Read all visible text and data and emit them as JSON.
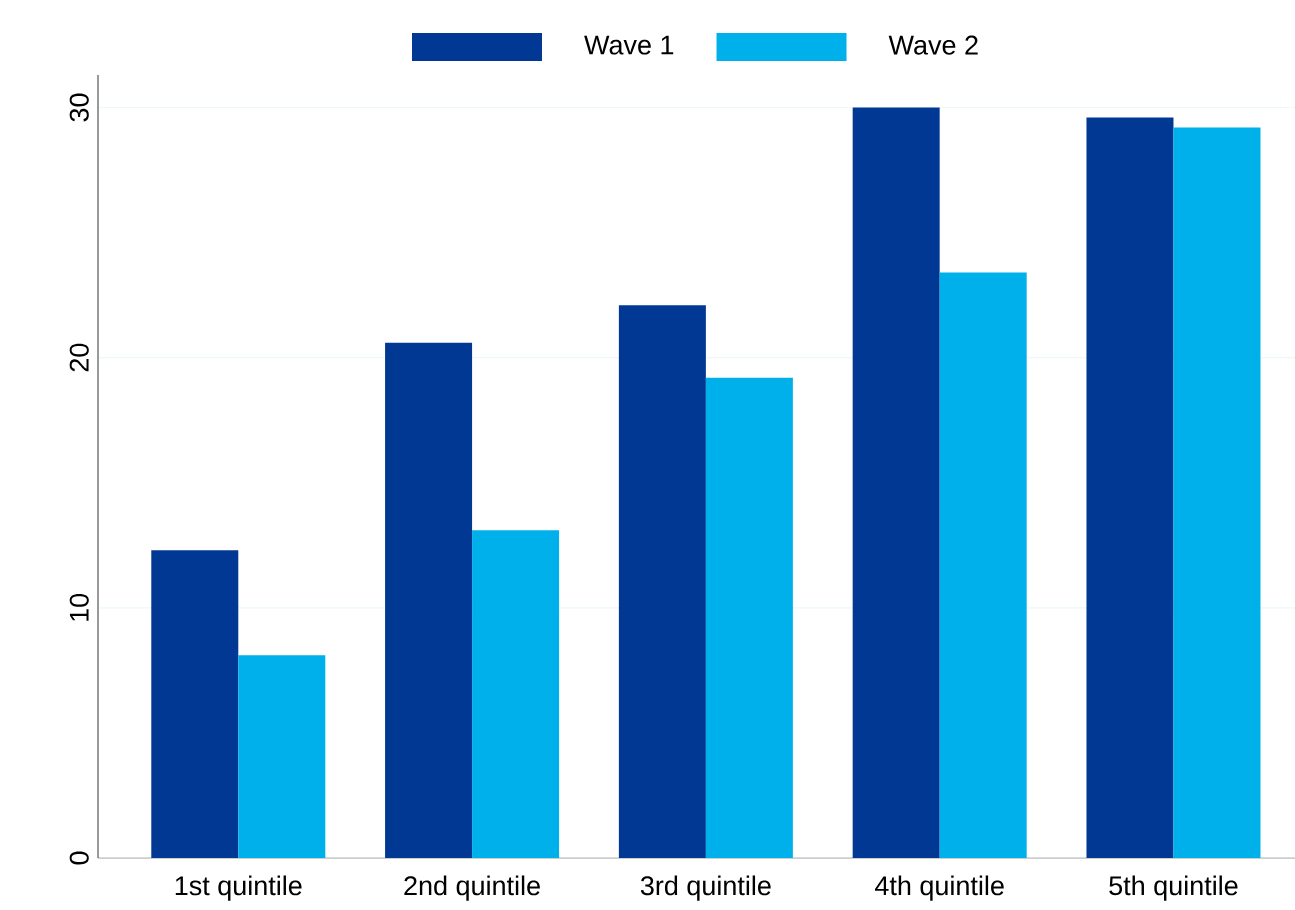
{
  "chart_data": {
    "type": "bar",
    "categories": [
      "1st quintile",
      "2nd quintile",
      "3rd quintile",
      "4th quintile",
      "5th quintile"
    ],
    "series": [
      {
        "name": "Wave 1",
        "color": "#003893",
        "values": [
          12.3,
          20.6,
          22.1,
          30.0,
          29.6
        ]
      },
      {
        "name": "Wave 2",
        "color": "#00b0ea",
        "values": [
          8.1,
          13.1,
          19.2,
          23.4,
          29.2
        ]
      }
    ],
    "ylim": [
      0,
      31.3
    ],
    "yticks": [
      0,
      10,
      20,
      30
    ],
    "grid": "y",
    "legend": "top"
  }
}
